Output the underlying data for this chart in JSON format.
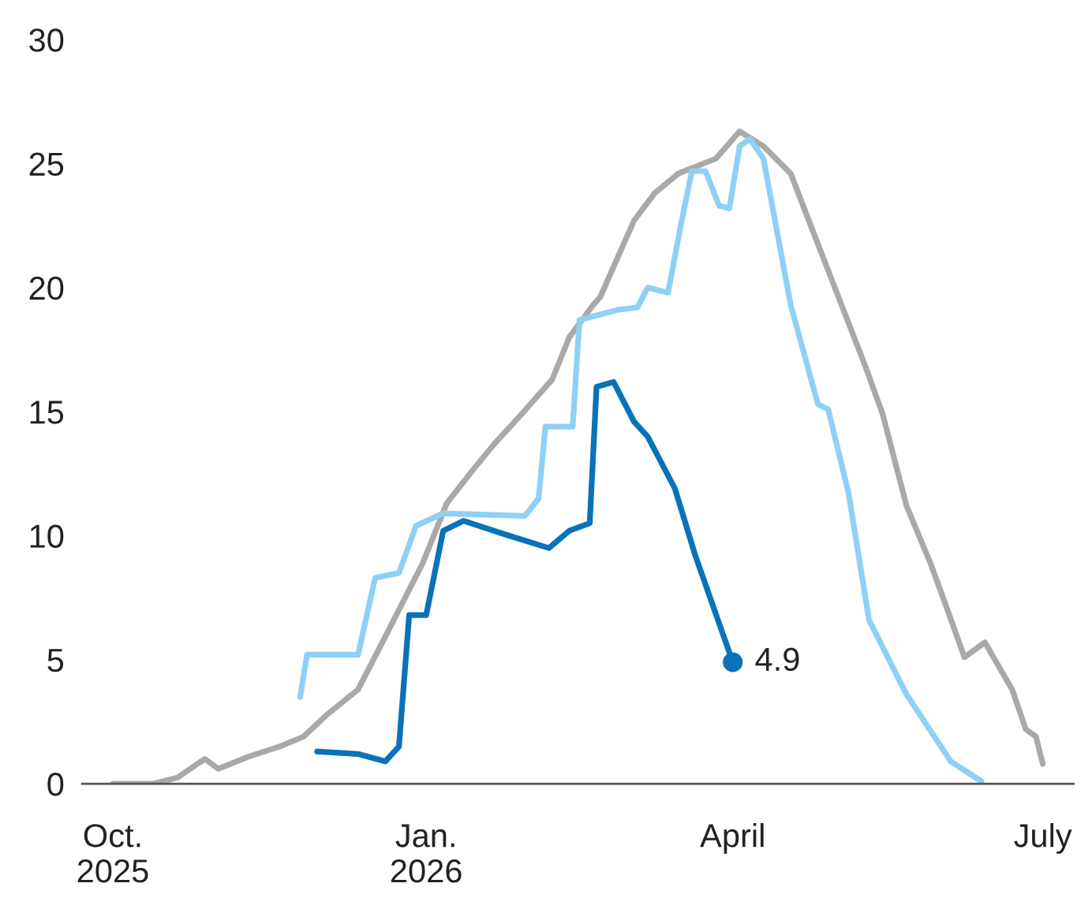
{
  "chart_data": {
    "type": "line",
    "xlim": [
      "2025-09-22",
      "2026-07-10"
    ],
    "xticks": [
      {
        "value": "2025-10-01",
        "label": "Oct.\n2025"
      },
      {
        "value": "2026-01-01",
        "label": "Jan.\n2026"
      },
      {
        "value": "2026-04-01",
        "label": "April"
      },
      {
        "value": "2026-07-01",
        "label": "July"
      }
    ],
    "ylim": [
      0,
      30
    ],
    "yticks": [
      0,
      5,
      10,
      15,
      20,
      25,
      30
    ],
    "grid": false,
    "legend": false,
    "line_style": "solid",
    "series": [
      {
        "color": "#a9a9a9",
        "x": [
          "2025-10-01",
          "2025-10-13",
          "2025-10-20",
          "2025-10-28",
          "2025-11-01",
          "2025-11-10",
          "2025-11-19",
          "2025-11-26",
          "2025-12-03",
          "2025-12-12",
          "2025-12-21",
          "2025-12-31",
          "2026-01-07",
          "2026-01-15",
          "2026-01-21",
          "2026-01-29",
          "2026-02-07",
          "2026-02-12",
          "2026-02-19",
          "2026-02-21",
          "2026-03-03",
          "2026-03-09",
          "2026-03-16",
          "2026-03-27",
          "2026-04-03",
          "2026-04-10",
          "2026-04-18",
          "2026-04-27",
          "2026-05-10",
          "2026-05-15",
          "2026-05-22",
          "2026-05-29",
          "2026-06-02",
          "2026-06-08",
          "2026-06-14",
          "2026-06-22",
          "2026-06-26",
          "2026-06-29",
          "2026-07-01"
        ],
        "values": [
          0,
          0,
          0.25,
          1.0,
          0.6,
          1.1,
          1.5,
          1.9,
          2.8,
          3.8,
          6.2,
          8.9,
          11.3,
          12.7,
          13.7,
          14.9,
          16.3,
          18.0,
          19.3,
          19.6,
          22.7,
          23.8,
          24.6,
          25.2,
          26.3,
          25.7,
          24.6,
          21.4,
          16.8,
          14.9,
          11.2,
          8.9,
          7.4,
          5.1,
          5.7,
          3.8,
          2.2,
          1.9,
          0.8
        ]
      },
      {
        "color": "#8fd0f5",
        "x": [
          "2025-11-25",
          "2025-11-27",
          "2025-12-12",
          "2025-12-17",
          "2025-12-24",
          "2025-12-29",
          "2026-01-06",
          "2026-01-30",
          "2026-02-03",
          "2026-02-05",
          "2026-02-13",
          "2026-02-15",
          "2026-02-26",
          "2026-03-04",
          "2026-03-07",
          "2026-03-13",
          "2026-03-17",
          "2026-03-20",
          "2026-03-24",
          "2026-03-28",
          "2026-03-31",
          "2026-04-03",
          "2026-04-06",
          "2026-04-10",
          "2026-04-18",
          "2026-04-26",
          "2026-04-29",
          "2026-05-05",
          "2026-05-11",
          "2026-05-22",
          "2026-06-04",
          "2026-06-13"
        ],
        "values": [
          3.5,
          5.2,
          5.2,
          8.3,
          8.5,
          10.4,
          10.9,
          10.8,
          11.5,
          14.4,
          14.4,
          18.7,
          19.1,
          19.2,
          20.0,
          19.8,
          22.7,
          24.7,
          24.7,
          23.3,
          23.2,
          25.7,
          26.0,
          25.2,
          19.3,
          15.3,
          15.1,
          11.7,
          6.6,
          3.6,
          0.9,
          0.1
        ]
      },
      {
        "color": "#0a72b8",
        "x": [
          "2025-11-30",
          "2025-12-12",
          "2025-12-20",
          "2025-12-24",
          "2025-12-27",
          "2026-01-01",
          "2026-01-06",
          "2026-01-12",
          "2026-01-23",
          "2026-02-06",
          "2026-02-12",
          "2026-02-18",
          "2026-02-20",
          "2026-02-25",
          "2026-03-03",
          "2026-03-07",
          "2026-03-15",
          "2026-03-21",
          "2026-04-01"
        ],
        "values": [
          1.3,
          1.2,
          0.9,
          1.5,
          6.8,
          6.8,
          10.2,
          10.6,
          10.1,
          9.5,
          10.2,
          10.5,
          16.0,
          16.2,
          14.6,
          14.0,
          11.9,
          9.2,
          4.9
        ],
        "value_labels": [
          null,
          null,
          null,
          null,
          null,
          null,
          null,
          null,
          null,
          null,
          null,
          null,
          null,
          null,
          null,
          null,
          null,
          null,
          "4.9"
        ]
      }
    ]
  }
}
